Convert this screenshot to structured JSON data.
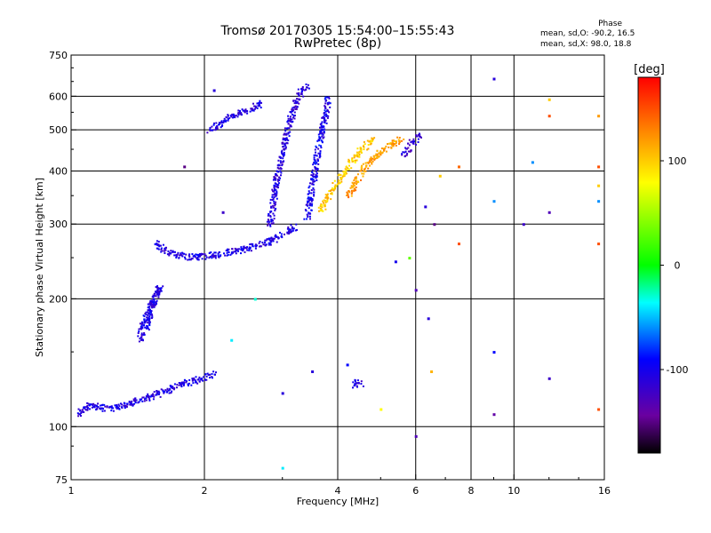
{
  "header": {
    "title_line1": "Tromsø 20170305 15:54:00–15:55:43",
    "title_line2": "RwPretec (8p)",
    "phase_label": "Phase",
    "stats_o": "mean, sd,O: -90.2, 16.5",
    "stats_x": "mean, sd,X:  98.0, 18.8"
  },
  "chart_data": {
    "type": "scatter",
    "title": "Tromsø 20170305 15:54:00–15:55:43",
    "subtitle": "RwPretec (8p)",
    "xlabel": "Frequency [MHz]",
    "ylabel": "Stationary phase Virtual Height [km]",
    "xscale": "log",
    "yscale": "log",
    "xlim": [
      1,
      16
    ],
    "ylim": [
      75,
      750
    ],
    "xticks": [
      1,
      2,
      4,
      6,
      8,
      10,
      16
    ],
    "xtick_labels": [
      "1",
      "2",
      "4",
      "6",
      "8",
      "10",
      "16"
    ],
    "yticks": [
      75,
      100,
      200,
      300,
      400,
      500,
      600,
      750
    ],
    "ytick_labels": [
      "75",
      "100",
      "200",
      "300",
      "400",
      "500",
      "600",
      "750"
    ],
    "grid": true,
    "colorbar": {
      "label": "[deg]",
      "range": [
        -180,
        180
      ],
      "ticks": [
        100,
        0,
        -100
      ],
      "tick_labels": [
        "100",
        "0",
        "-100"
      ],
      "colormap": "rainbow"
    },
    "trace_segments": [
      {
        "name": "low_layer",
        "phase": -105,
        "points": [
          [
            1.03,
            107
          ],
          [
            1.1,
            113
          ],
          [
            1.2,
            111
          ],
          [
            1.3,
            112
          ],
          [
            1.4,
            115
          ],
          [
            1.5,
            118
          ],
          [
            1.6,
            121
          ],
          [
            1.7,
            124
          ],
          [
            1.8,
            127
          ],
          [
            1.9,
            129
          ],
          [
            2.0,
            131
          ],
          [
            2.1,
            134
          ]
        ]
      },
      {
        "name": "intermediate_blob",
        "phase": -105,
        "points": [
          [
            1.42,
            160
          ],
          [
            1.45,
            175
          ],
          [
            1.5,
            190
          ],
          [
            1.55,
            205
          ],
          [
            1.58,
            215
          ],
          [
            1.52,
            195
          ],
          [
            1.47,
            170
          ]
        ]
      },
      {
        "name": "f_lower_trace",
        "phase": -105,
        "points": [
          [
            1.55,
            275
          ],
          [
            1.6,
            262
          ],
          [
            1.7,
            255
          ],
          [
            1.85,
            252
          ],
          [
            2.0,
            253
          ],
          [
            2.2,
            257
          ],
          [
            2.5,
            264
          ],
          [
            2.8,
            274
          ],
          [
            3.0,
            285
          ],
          [
            3.2,
            298
          ]
        ]
      },
      {
        "name": "f_early_cusp",
        "phase": -108,
        "points": [
          [
            2.05,
            500
          ],
          [
            2.15,
            515
          ],
          [
            2.3,
            540
          ],
          [
            2.5,
            560
          ],
          [
            2.7,
            580
          ]
        ]
      },
      {
        "name": "f_o_column",
        "phase": -110,
        "points": [
          [
            2.8,
            300
          ],
          [
            2.9,
            380
          ],
          [
            3.0,
            450
          ],
          [
            3.1,
            520
          ],
          [
            3.2,
            580
          ],
          [
            3.3,
            620
          ],
          [
            3.4,
            640
          ]
        ]
      },
      {
        "name": "f_o_second",
        "phase": -100,
        "points": [
          [
            3.4,
            310
          ],
          [
            3.5,
            380
          ],
          [
            3.6,
            450
          ],
          [
            3.7,
            520
          ],
          [
            3.8,
            600
          ]
        ]
      },
      {
        "name": "f_x_trace",
        "phase": 100,
        "points": [
          [
            3.6,
            320
          ],
          [
            3.8,
            350
          ],
          [
            4.0,
            380
          ],
          [
            4.2,
            410
          ],
          [
            4.4,
            440
          ],
          [
            4.6,
            460
          ],
          [
            4.8,
            480
          ]
        ]
      },
      {
        "name": "f_x_cusp",
        "phase": 120,
        "points": [
          [
            4.2,
            350
          ],
          [
            4.5,
            400
          ],
          [
            4.8,
            430
          ],
          [
            5.2,
            460
          ],
          [
            5.6,
            480
          ]
        ]
      },
      {
        "name": "f_high_tail",
        "phase": -115,
        "points": [
          [
            5.6,
            440
          ],
          [
            5.8,
            460
          ],
          [
            6.0,
            480
          ],
          [
            6.1,
            490
          ]
        ]
      },
      {
        "name": "mid_cluster",
        "phase": -105,
        "points": [
          [
            4.3,
            125
          ],
          [
            4.4,
            128
          ],
          [
            4.5,
            126
          ]
        ]
      }
    ],
    "scattered_points": [
      {
        "x": 1.8,
        "y": 410,
        "phase": -150
      },
      {
        "x": 2.1,
        "y": 620,
        "phase": -110
      },
      {
        "x": 2.2,
        "y": 320,
        "phase": -120
      },
      {
        "x": 2.3,
        "y": 160,
        "phase": -40
      },
      {
        "x": 2.6,
        "y": 200,
        "phase": -30
      },
      {
        "x": 3.0,
        "y": 120,
        "phase": -110
      },
      {
        "x": 3.0,
        "y": 80,
        "phase": -40
      },
      {
        "x": 3.5,
        "y": 135,
        "phase": -110
      },
      {
        "x": 4.2,
        "y": 140,
        "phase": -90
      },
      {
        "x": 5.0,
        "y": 110,
        "phase": 80
      },
      {
        "x": 5.4,
        "y": 245,
        "phase": -100
      },
      {
        "x": 5.8,
        "y": 250,
        "phase": 30
      },
      {
        "x": 6.0,
        "y": 210,
        "phase": -130
      },
      {
        "x": 6.0,
        "y": 95,
        "phase": -130
      },
      {
        "x": 6.3,
        "y": 330,
        "phase": -110
      },
      {
        "x": 6.4,
        "y": 180,
        "phase": -110
      },
      {
        "x": 6.5,
        "y": 135,
        "phase": 110
      },
      {
        "x": 6.6,
        "y": 300,
        "phase": -150
      },
      {
        "x": 6.8,
        "y": 390,
        "phase": 100
      },
      {
        "x": 7.5,
        "y": 410,
        "phase": 140
      },
      {
        "x": 7.5,
        "y": 270,
        "phase": 150
      },
      {
        "x": 9.0,
        "y": 660,
        "phase": -110
      },
      {
        "x": 9.0,
        "y": 340,
        "phase": -60
      },
      {
        "x": 9.0,
        "y": 150,
        "phase": -90
      },
      {
        "x": 9.0,
        "y": 107,
        "phase": -140
      },
      {
        "x": 10.5,
        "y": 300,
        "phase": -120
      },
      {
        "x": 11.0,
        "y": 420,
        "phase": -60
      },
      {
        "x": 12.0,
        "y": 590,
        "phase": 100
      },
      {
        "x": 12.0,
        "y": 540,
        "phase": 150
      },
      {
        "x": 12.0,
        "y": 320,
        "phase": -130
      },
      {
        "x": 12.0,
        "y": 130,
        "phase": -120
      },
      {
        "x": 15.5,
        "y": 540,
        "phase": 120
      },
      {
        "x": 15.5,
        "y": 410,
        "phase": 150
      },
      {
        "x": 15.5,
        "y": 370,
        "phase": 100
      },
      {
        "x": 15.5,
        "y": 340,
        "phase": -60
      },
      {
        "x": 15.5,
        "y": 270,
        "phase": 150
      },
      {
        "x": 15.5,
        "y": 110,
        "phase": 150
      }
    ]
  }
}
